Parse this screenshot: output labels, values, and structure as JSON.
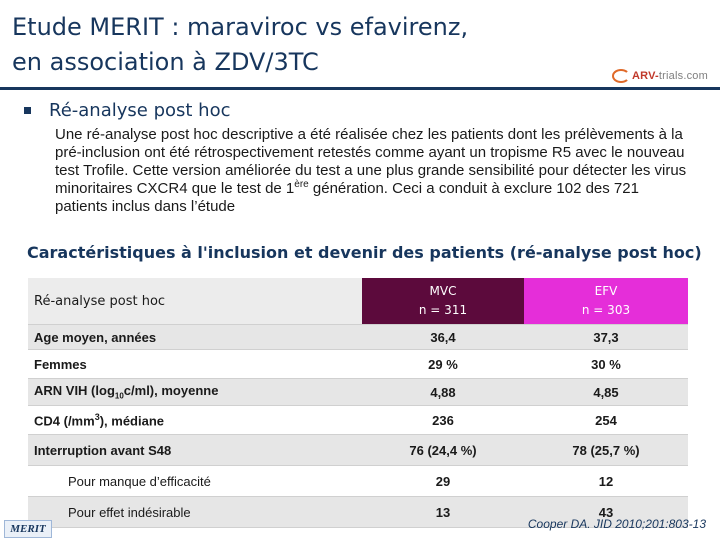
{
  "title": {
    "line1": "Etude MERIT : maraviroc vs efavirenz,",
    "line2": "en association à ZDV/3TC"
  },
  "logo": {
    "main": "ARV-",
    "sub": "trials.com"
  },
  "section": {
    "bullet": "Ré-analyse post hoc",
    "paragraph_part1": "Une ré-analyse post hoc descriptive a été réalisée chez les patients dont les prélèvements à la pré-inclusion ont été rétrospectivement retestés comme ayant un tropisme R5 avec le nouveau test Trofile. Cette version améliorée du test a une plus grande sensibilité pour détecter les virus minoritaires CXCR4 que le test de 1",
    "paragraph_sup": "ère",
    "paragraph_part2": " génération. Ceci a conduit à exclure 102 des 721 patients inclus dans l’étude"
  },
  "subheading": "Caractéristiques à l'inclusion et devenir des patients (ré-analyse post hoc)",
  "table": {
    "header": {
      "label": "Ré-analyse post hoc",
      "mvc_name": "MVC",
      "mvc_n": "n = 311",
      "efv_name": "EFV",
      "efv_n": "n = 303"
    },
    "age": {
      "label": "Age moyen, années",
      "mvc": "36,4",
      "efv": "37,3"
    },
    "femmes": {
      "label": "Femmes",
      "mvc": "29 %",
      "efv": "30 %"
    },
    "arn": {
      "label_a": "ARN VIH (log",
      "label_sub": "10",
      "label_b": "c/ml), moyenne",
      "mvc": "4,88",
      "efv": "4,85"
    },
    "cd4": {
      "label_a": "CD4 (/mm",
      "label_sup": "3",
      "label_b": "), médiane",
      "mvc": "236",
      "efv": "254"
    },
    "interruption": {
      "label": "Interruption avant S48",
      "mvc": "76 (24,4 %)",
      "efv": "78 (25,7 %)"
    },
    "efficacite": {
      "label": "Pour manque d’efficacité",
      "mvc": "29",
      "efv": "12"
    },
    "indesirable": {
      "label": "Pour effet indésirable",
      "mvc": "13",
      "efv": "43"
    }
  },
  "footer": {
    "badge": "MERIT",
    "reference": "Cooper DA. JID 2010;201:803-13"
  }
}
